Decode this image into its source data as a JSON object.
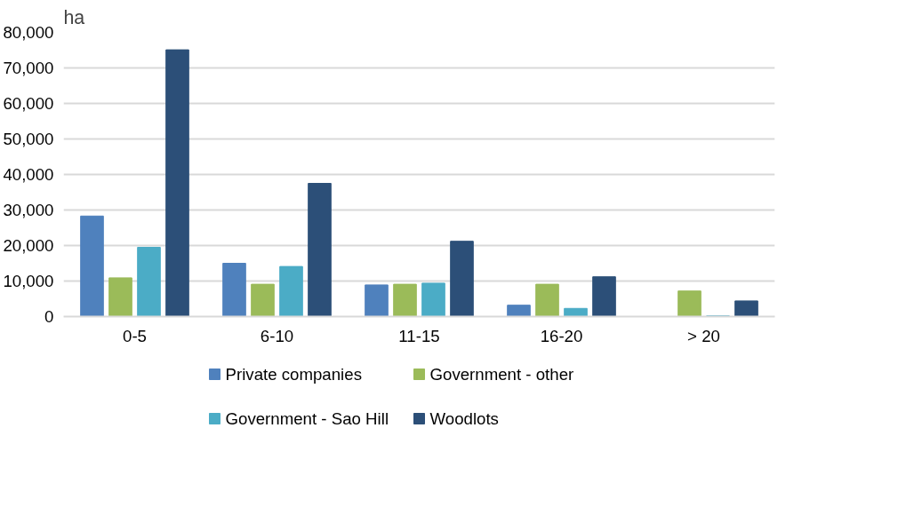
{
  "chart_data": {
    "type": "bar",
    "ylabel": "ha",
    "categories": [
      "0-5",
      "6-10",
      "11-15",
      "16-20",
      "> 20"
    ],
    "series": [
      {
        "name": "Private companies",
        "color": "#4f81bd",
        "values": [
          28300,
          15000,
          8900,
          3200,
          0
        ]
      },
      {
        "name": "Government - other",
        "color": "#9bbb59",
        "values": [
          10900,
          9100,
          9100,
          9100,
          7200
        ]
      },
      {
        "name": "Government - Sao Hill",
        "color": "#4bacc6",
        "values": [
          19500,
          14100,
          9400,
          2300,
          200
        ]
      },
      {
        "name": "Woodlots",
        "color": "#2c4f78",
        "values": [
          75100,
          37500,
          21200,
          11200,
          4400
        ]
      }
    ],
    "ylim": [
      0,
      80000
    ],
    "yticks": [
      {
        "value": 0,
        "label": "0"
      },
      {
        "value": 10000,
        "label": "10,000"
      },
      {
        "value": 20000,
        "label": "20,000"
      },
      {
        "value": 30000,
        "label": "30,000"
      },
      {
        "value": 40000,
        "label": "40,000"
      },
      {
        "value": 50000,
        "label": "50,000"
      },
      {
        "value": 60000,
        "label": "60,000"
      },
      {
        "value": 70000,
        "label": "70,000"
      },
      {
        "value": 80000,
        "label": "80,000"
      }
    ],
    "grid": "y",
    "legend": "bottom"
  }
}
